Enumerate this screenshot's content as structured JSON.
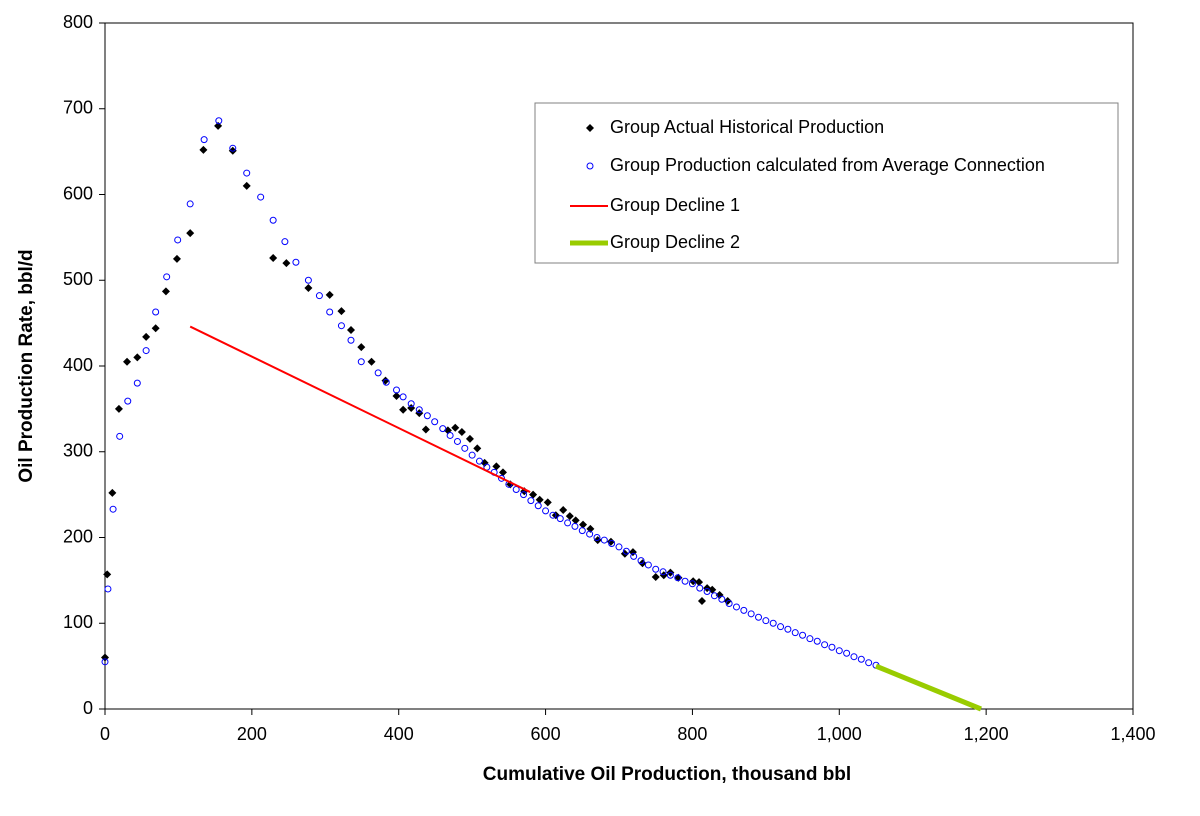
{
  "chart_data": {
    "type": "scatter",
    "xlabel": "Cumulative Oil Production, thousand bbl",
    "ylabel": "Oil Production Rate, bbl/d",
    "xlim": [
      0,
      1400
    ],
    "ylim": [
      0,
      800
    ],
    "xticks": [
      0,
      200,
      400,
      600,
      800,
      {
        "value": 1000,
        "label": "1,000"
      },
      {
        "value": 1200,
        "label": "1,200"
      },
      {
        "value": 1400,
        "label": "1,400"
      }
    ],
    "yticks": [
      0,
      100,
      200,
      300,
      400,
      500,
      600,
      700,
      800
    ],
    "grid": false,
    "legend": "upper right",
    "series": [
      {
        "name": "Group Actual Historical Production",
        "color": "#000000",
        "marker": "diamond",
        "x": [
          0,
          3,
          10,
          19,
          30,
          44,
          56,
          69,
          83,
          98,
          116,
          134,
          154,
          174,
          193,
          229,
          247,
          277,
          306,
          322,
          335,
          349,
          363,
          382,
          397,
          406,
          417,
          428,
          437,
          467,
          477,
          486,
          497,
          507,
          517,
          533,
          542,
          552,
          571,
          583,
          592,
          603,
          614,
          624,
          633,
          641,
          651,
          661,
          671,
          689,
          708,
          719,
          732,
          750,
          761,
          770,
          781,
          801,
          809,
          813,
          820,
          827,
          837,
          848
        ],
        "values": [
          60,
          157,
          252,
          350,
          405,
          410,
          434,
          444,
          487,
          525,
          555,
          652,
          680,
          651,
          610,
          526,
          520,
          491,
          483,
          464,
          442,
          422,
          405,
          383,
          365,
          349,
          351,
          345,
          326,
          325,
          328,
          323,
          315,
          304,
          287,
          283,
          276,
          262,
          254,
          250,
          244,
          241,
          226,
          232,
          225,
          220,
          215,
          210,
          197,
          195,
          181,
          183,
          170,
          154,
          156,
          159,
          153,
          149,
          148,
          126,
          141,
          139,
          133,
          126
        ]
      },
      {
        "name": "Group Production calculated from Average Connection",
        "color": "#0000ff",
        "marker": "circle",
        "x": [
          0,
          4,
          11,
          20,
          31,
          44,
          56,
          69,
          84,
          99,
          116,
          135,
          155,
          174,
          193,
          212,
          229,
          245,
          260,
          277,
          292,
          306,
          322,
          335,
          349,
          372,
          383,
          397,
          406,
          417,
          428,
          439,
          449,
          460,
          470,
          480,
          490,
          500,
          510,
          520,
          530,
          540,
          550,
          560,
          570,
          580,
          590,
          600,
          610,
          620,
          630,
          640,
          650,
          660,
          670,
          680,
          690,
          700,
          710,
          720,
          730,
          740,
          750,
          760,
          770,
          780,
          790,
          800,
          810,
          820,
          830,
          840,
          850,
          860,
          870,
          880,
          890,
          900,
          910,
          920,
          930,
          940,
          950,
          960,
          970,
          980,
          990,
          1000,
          1010,
          1020,
          1030,
          1040,
          1050
        ],
        "values": [
          55,
          140,
          233,
          318,
          359,
          380,
          418,
          463,
          504,
          547,
          589,
          664,
          686,
          654,
          625,
          597,
          570,
          545,
          521,
          500,
          482,
          463,
          447,
          430,
          405,
          392,
          381,
          372,
          364,
          356,
          349,
          342,
          335,
          327,
          319,
          312,
          304,
          296,
          289,
          282,
          276,
          269,
          262,
          256,
          250,
          243,
          237,
          231,
          226,
          222,
          217,
          213,
          208,
          204,
          200,
          197,
          193,
          189,
          184,
          178,
          173,
          168,
          163,
          160,
          156,
          153,
          149,
          146,
          141,
          137,
          132,
          128,
          123,
          119,
          115,
          111,
          107,
          103,
          100,
          96,
          93,
          89,
          86,
          82,
          79,
          75,
          72,
          68,
          65,
          61,
          58,
          54,
          51
        ]
      },
      {
        "name": "Group Decline 1",
        "color": "#ff0000",
        "marker": "line",
        "x": [
          116,
          579
        ],
        "values": [
          446,
          253
        ]
      },
      {
        "name": "Group Decline 2",
        "color": "#99cc00",
        "marker": "line",
        "x": [
          1050,
          1193
        ],
        "values": [
          50,
          0
        ]
      }
    ]
  }
}
